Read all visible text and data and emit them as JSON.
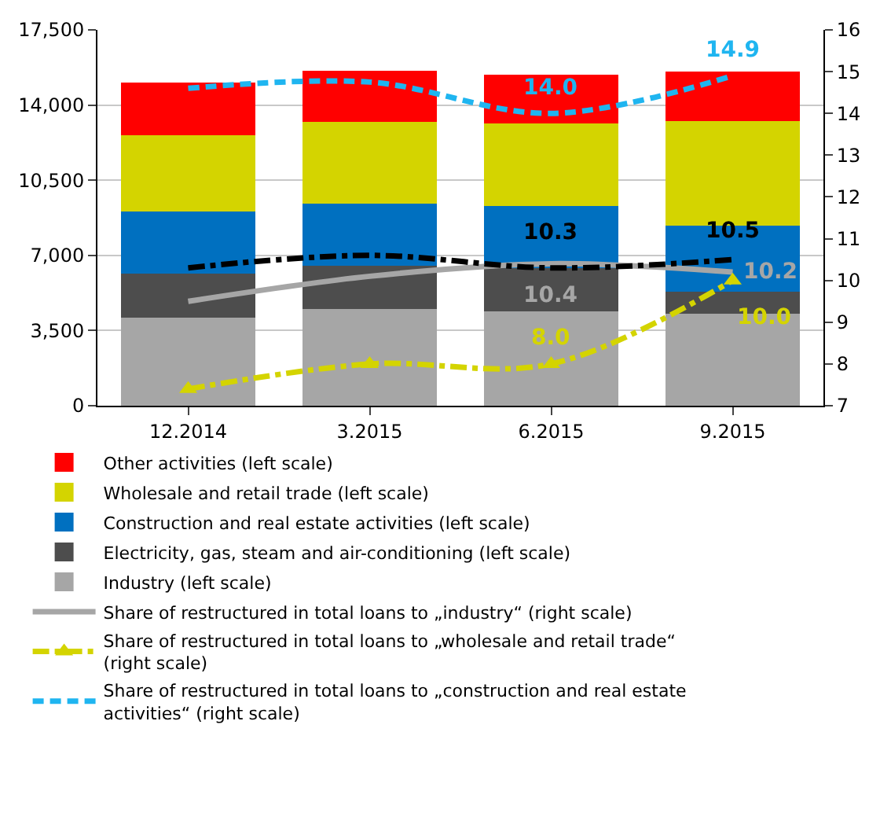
{
  "chart_data": {
    "type": "bar",
    "stacked": true,
    "categories": [
      "12.2014",
      "3.2015",
      "6.2015",
      "9.2015"
    ],
    "series": [
      {
        "name": "Industry (left scale)",
        "color": "#a6a6a6",
        "values": [
          4100,
          4500,
          4400,
          4300
        ]
      },
      {
        "name": "Electricity, gas, steam and air-conditioning (left scale)",
        "color": "#4d4d4d",
        "values": [
          2050,
          2000,
          2000,
          1000
        ]
      },
      {
        "name": "Construction and real estate activities (left scale)",
        "color": "#0070c0",
        "values": [
          2900,
          2900,
          2900,
          3100
        ]
      },
      {
        "name": "Wholesale and retail trade (left scale)",
        "color": "#d4d400",
        "values": [
          3550,
          3800,
          3850,
          4850
        ]
      },
      {
        "name": "Other activities (left scale)",
        "color": "#ff0000",
        "values": [
          2450,
          2400,
          2250,
          2300
        ]
      },
      {
        "name": "Share of restructured in total loans to „industry“ (right scale)",
        "type": "line",
        "axis": "y2",
        "color": "#a6a6a6",
        "line_style": "solid",
        "marker": "none",
        "values": [
          9.5,
          10.1,
          10.4,
          10.2
        ],
        "value_labels": [
          null,
          null,
          "10.4",
          "10.2"
        ]
      },
      {
        "name": "Share of restructured in total loans to „wholesale and retail trade“ (right scale)",
        "type": "line",
        "axis": "y2",
        "color": "#d4d400",
        "line_style": "dashdot",
        "marker": "triangle",
        "values": [
          7.4,
          8.0,
          8.0,
          10.0
        ],
        "value_labels": [
          null,
          null,
          "8.0",
          "10.0"
        ]
      },
      {
        "name": "Share of restructured in total loans to „construction and real estate activities“ (right scale)",
        "type": "line",
        "axis": "y2",
        "color": "#1fb5f0",
        "line_style": "dashed",
        "marker": "none",
        "values": [
          14.6,
          14.75,
          14.0,
          14.9
        ],
        "value_labels": [
          null,
          null,
          "14.0",
          "14.9"
        ]
      },
      {
        "type": "line",
        "axis": "y2",
        "color": "#000000",
        "line_style": "dashdot",
        "marker": "none",
        "values": [
          10.3,
          10.6,
          10.3,
          10.5
        ],
        "value_labels": [
          null,
          null,
          "10.3",
          "10.5"
        ]
      }
    ],
    "ylim": [
      0,
      17500
    ],
    "yticks": [
      {
        "value": 0,
        "label": "0"
      },
      {
        "value": 3500,
        "label": "3,500"
      },
      {
        "value": 7000,
        "label": "7,000"
      },
      {
        "value": 10500,
        "label": "10,500"
      },
      {
        "value": 14000,
        "label": "14,000"
      },
      {
        "value": 17500,
        "label": "17,500"
      }
    ],
    "y2lim": [
      7,
      16
    ],
    "y2ticks": [
      7,
      8,
      9,
      10,
      11,
      12,
      13,
      14,
      15,
      16
    ],
    "grid": "y",
    "legend": "bottom"
  }
}
